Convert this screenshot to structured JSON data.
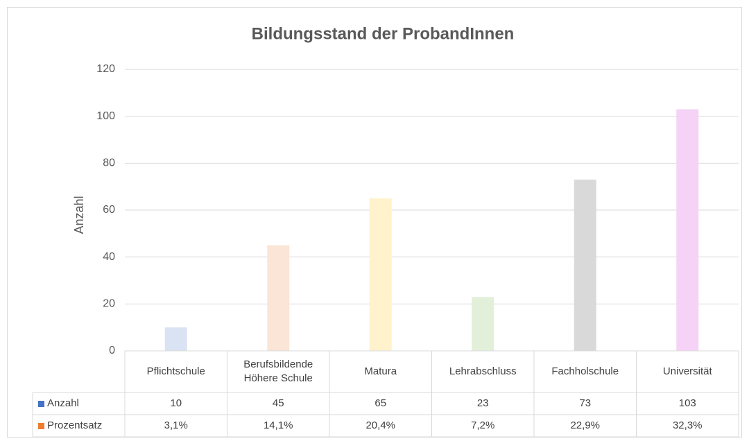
{
  "chart_data": {
    "type": "bar",
    "title": "Bildungsstand der ProbandInnen",
    "y_label": "Anzahl",
    "categories": [
      "Pflichtschule",
      "Berufsbildende Höhere Schule",
      "Matura",
      "Lehrabschluss",
      "Fachholschule",
      "Universität"
    ],
    "series": [
      {
        "name": "Anzahl",
        "color": "#4472c4",
        "values": [
          10,
          45,
          65,
          23,
          73,
          103
        ],
        "point_colors": [
          "#dae3f3",
          "#fbe5d6",
          "#fff2cc",
          "#e2f0d9",
          "#d9d9d9",
          "#f6d3f6"
        ]
      },
      {
        "name": "Prozentsatz",
        "color": "#ed7d31",
        "values": [
          3.1,
          14.1,
          20.4,
          7.2,
          22.9,
          32.3
        ],
        "value_labels": [
          "3,1%",
          "14,1%",
          "20,4%",
          "7,2%",
          "22,9%",
          "32,3%"
        ]
      }
    ],
    "ylim": [
      0,
      120
    ],
    "yticks": [
      0,
      20,
      40,
      60,
      80,
      100,
      120
    ],
    "grid": true,
    "data_table": true
  }
}
